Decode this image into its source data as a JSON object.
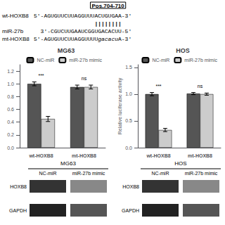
{
  "chart_data": [
    {
      "type": "bar",
      "title": "MG63",
      "categories": [
        "wt-HOXB8",
        "mt-HOXB8"
      ],
      "series": [
        {
          "name": "NC-miR",
          "color": "#555555",
          "values": [
            1.0,
            0.95
          ],
          "errors": [
            0.03,
            0.03
          ]
        },
        {
          "name": "miR-27b mimic",
          "color": "#cccccc",
          "values": [
            0.45,
            0.95
          ],
          "errors": [
            0.04,
            0.03
          ]
        }
      ],
      "ylim": [
        0,
        1.3
      ],
      "yticks": [
        {
          "value": 0,
          "label": "0.0"
        },
        0.2,
        0.4,
        0.6,
        0.8,
        {
          "value": 1,
          "label": "1.0"
        },
        1.2
      ],
      "grid": false,
      "legend": "upper right",
      "annotations": [
        {
          "text": "***",
          "category": "wt-HOXB8"
        },
        {
          "text": "ns",
          "category": "mt-HOXB8"
        }
      ],
      "sequence": {
        "title": "Pos.704-710",
        "rows": [
          {
            "label": "wt-HOXB8",
            "text": "5'-AGUGUUCUUAGGUUUACUGUGAA-3'"
          },
          {
            "text": "||||||||"
          },
          {
            "label": "miR-27b",
            "text": "3'-CGUCUUGAAUCGGUGACACUU-5'"
          },
          {
            "label": "mt-HOXB8",
            "parts": [
              "5'-AGUGUUCUUAGGUUUU",
              "gacacu",
              "A-3'"
            ]
          }
        ]
      },
      "blot": {
        "title": "MG63",
        "columns": [
          "NC-miR",
          "miR-27b mimic"
        ],
        "rows": [
          "HOXB8",
          "GAPDH"
        ]
      }
    },
    {
      "type": "bar",
      "title": "HOS",
      "ylabel": "Relative luciferase activity",
      "categories": [
        "wt-HOXB8",
        "mt-HOXB8"
      ],
      "series": [
        {
          "name": "NC-miR",
          "color": "#555555",
          "values": [
            1.0,
            1.01
          ],
          "errors": [
            0.03,
            0.02
          ]
        },
        {
          "name": "miR-27b mimic",
          "color": "#cccccc",
          "values": [
            0.33,
            1.0
          ],
          "errors": [
            0.03,
            0.02
          ]
        }
      ],
      "ylim": [
        0.0,
        1.55
      ],
      "yticks": [
        {
          "value": 0,
          "label": "0.0"
        },
        0.5,
        {
          "value": 1,
          "label": "1.0"
        },
        1.5
      ],
      "grid": false,
      "legend": "upper right",
      "annotations": [
        {
          "text": "***",
          "category": "wt-HOXB8"
        },
        {
          "text": "ns",
          "category": "mt-HOXB8"
        }
      ],
      "blot": {
        "title": "HOS",
        "columns": [
          "NC-miR",
          "miR-27b mimic"
        ],
        "rows": [
          "HOXB8",
          "GAPDH"
        ]
      }
    }
  ]
}
